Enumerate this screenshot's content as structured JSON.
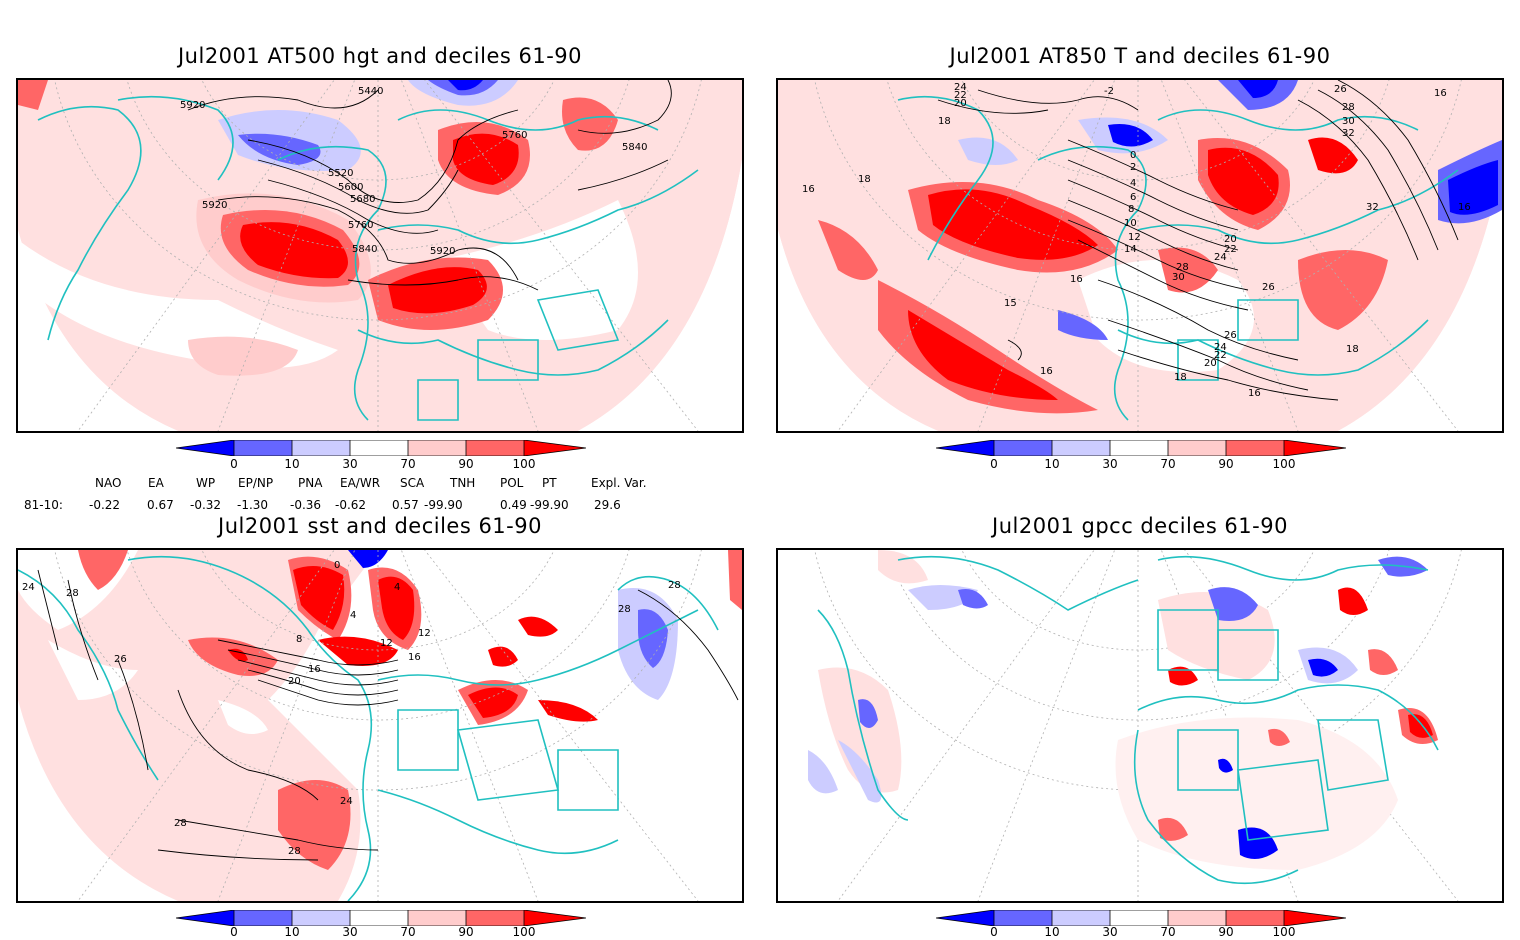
{
  "panels": [
    {
      "title": "Jul2001 AT500 hgt and deciles 61-90",
      "contour_labels": [
        "5440",
        "5920",
        "5520",
        "5600",
        "5680",
        "5760",
        "5840",
        "5920",
        "5760",
        "5840",
        "5920"
      ]
    },
    {
      "title": "Jul2001 AT850 T and deciles 61-90",
      "contour_labels": [
        "24",
        "22",
        "20",
        "18",
        "-2",
        "18",
        "16",
        "0",
        "2",
        "4",
        "6",
        "8",
        "10",
        "12",
        "14",
        "16",
        "20",
        "22",
        "24",
        "28",
        "30",
        "26",
        "28",
        "30",
        "32",
        "32",
        "16",
        "26",
        "24",
        "22",
        "20",
        "18",
        "16",
        "16",
        "18",
        "15",
        "16",
        "26"
      ]
    },
    {
      "title": "Jul2001 sst and deciles 61-90",
      "contour_labels": [
        "24",
        "28",
        "28",
        "28",
        "26",
        "0",
        "12",
        "16",
        "20",
        "16",
        "12",
        "8",
        "4",
        "4",
        "24",
        "28",
        "28"
      ]
    },
    {
      "title": "Jul2001 gpcc deciles 61-90",
      "contour_labels": []
    }
  ],
  "colorbar": {
    "ticks": [
      "0",
      "10",
      "30",
      "70",
      "90",
      "100"
    ],
    "colors": [
      "#0000ff",
      "#6666ff",
      "#ccccff",
      "#ffffff",
      "#ffcccc",
      "#ff6666",
      "#ff0000"
    ]
  },
  "indices": {
    "headers": [
      "NAO",
      "EA",
      "WP",
      "EP/NP",
      "PNA",
      "EA/WR",
      "SCA",
      "TNH",
      "POL",
      "PT",
      "Expl. Var."
    ],
    "row_label": "81-10:",
    "values": [
      "-0.22",
      "0.67",
      "-0.32",
      "-1.30",
      "-0.36",
      "-0.62",
      "0.57",
      "-99.90",
      "0.49",
      "-99.90",
      "29.6"
    ]
  },
  "colors": {
    "land_outline": "#20c0c0",
    "pos_strong": "#ff0000",
    "pos_mid": "#ff6666",
    "pos_light": "#ffcccc",
    "neg_strong": "#0000ff",
    "neg_mid": "#6666ff",
    "neg_light": "#ccccff"
  }
}
